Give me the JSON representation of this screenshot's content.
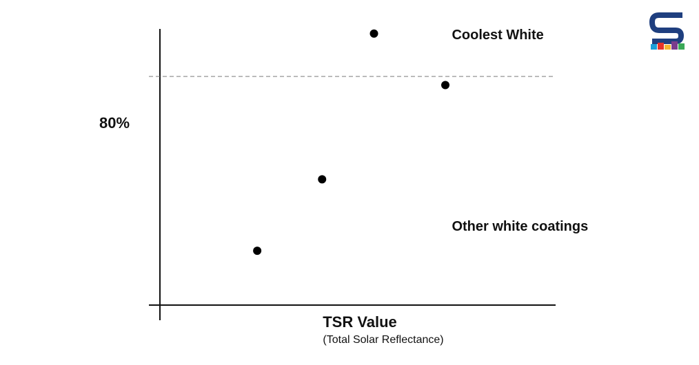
{
  "chart_data": {
    "type": "scatter",
    "title": "",
    "xlabel": "TSR Value",
    "xlabel_sub": "(Total Solar Reflectance)",
    "ylabel": "",
    "ylim": [
      0,
      100
    ],
    "reference_line": {
      "y": 80,
      "label": "80%",
      "style": "dashed"
    },
    "points": [
      {
        "x": 1.0,
        "y": 19
      },
      {
        "x": 2.0,
        "y": 44
      },
      {
        "x": 2.8,
        "y": 95
      },
      {
        "x": 3.9,
        "y": 77
      }
    ],
    "xlim": [
      -0.5,
      5.6
    ],
    "annotations": [
      {
        "text": "Coolest White",
        "x": 4.0,
        "y": 95
      },
      {
        "text": "Other white coatings",
        "x": 4.0,
        "y": 28
      }
    ],
    "grid": false,
    "colors": {
      "points": "#000000",
      "axes": "#111111",
      "reference_line": "#777777"
    }
  },
  "logo": {
    "name": "s-logo-icon",
    "colors": [
      "#1f3f7f",
      "#1b9fd8",
      "#e5332a",
      "#f2b632",
      "#7a3c8c",
      "#3aa957"
    ]
  }
}
